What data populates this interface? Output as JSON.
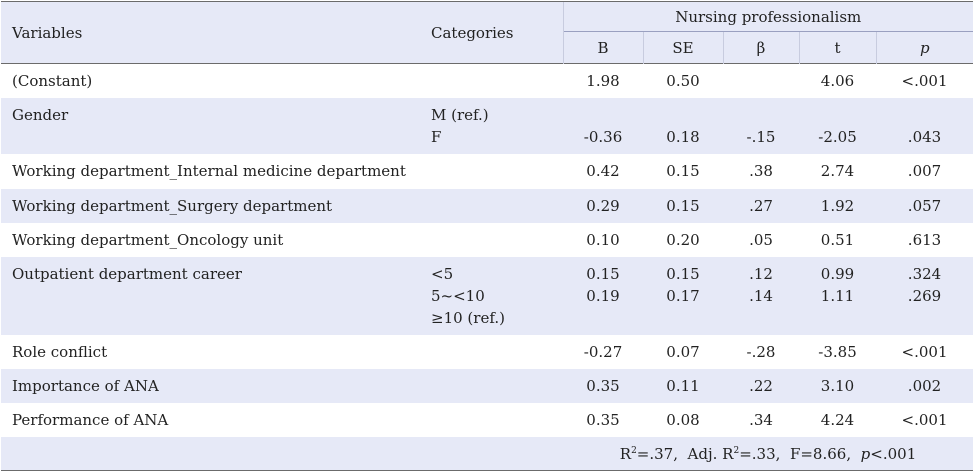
{
  "table": {
    "header": {
      "variables": "Variables",
      "categories": "Categories",
      "group": "Nursing professionalism",
      "cols": [
        "B",
        "SE",
        "β",
        "t",
        "p"
      ]
    },
    "rows": [
      {
        "variable": "(Constant)",
        "categories": [
          ""
        ],
        "B": [
          "1.98"
        ],
        "SE": [
          "0.50"
        ],
        "beta": [
          ""
        ],
        "t": [
          "4.06"
        ],
        "p": [
          "<.001"
        ]
      },
      {
        "variable": "Gender",
        "categories": [
          "M (ref.)",
          "F"
        ],
        "B": [
          "",
          "-0.36"
        ],
        "SE": [
          "",
          "0.18"
        ],
        "beta": [
          "",
          "-.15"
        ],
        "t": [
          "",
          "-2.05"
        ],
        "p": [
          "",
          ".043"
        ]
      },
      {
        "variable": "Working department_Internal medicine department",
        "categories": [
          ""
        ],
        "B": [
          "0.42"
        ],
        "SE": [
          "0.15"
        ],
        "beta": [
          ".38"
        ],
        "t": [
          "2.74"
        ],
        "p": [
          ".007"
        ]
      },
      {
        "variable": "Working department_Surgery department",
        "categories": [
          ""
        ],
        "B": [
          "0.29"
        ],
        "SE": [
          "0.15"
        ],
        "beta": [
          ".27"
        ],
        "t": [
          "1.92"
        ],
        "p": [
          ".057"
        ]
      },
      {
        "variable": "Working department_Oncology unit",
        "categories": [
          ""
        ],
        "B": [
          "0.10"
        ],
        "SE": [
          "0.20"
        ],
        "beta": [
          ".05"
        ],
        "t": [
          "0.51"
        ],
        "p": [
          ".613"
        ]
      },
      {
        "variable": "Outpatient department career",
        "categories": [
          "<5",
          "5~<10",
          "≥10 (ref.)"
        ],
        "B": [
          "0.15",
          "0.19",
          ""
        ],
        "SE": [
          "0.15",
          "0.17",
          ""
        ],
        "beta": [
          ".12",
          ".14",
          ""
        ],
        "t": [
          "0.99",
          "1.11",
          ""
        ],
        "p": [
          ".324",
          ".269",
          ""
        ]
      },
      {
        "variable": "Role conflict",
        "categories": [
          ""
        ],
        "B": [
          "-0.27"
        ],
        "SE": [
          "0.07"
        ],
        "beta": [
          "-.28"
        ],
        "t": [
          "-3.85"
        ],
        "p": [
          "<.001"
        ]
      },
      {
        "variable": "Importance of ANA",
        "categories": [
          ""
        ],
        "B": [
          "0.35"
        ],
        "SE": [
          "0.11"
        ],
        "beta": [
          ".22"
        ],
        "t": [
          "3.10"
        ],
        "p": [
          ".002"
        ]
      },
      {
        "variable": "Performance of ANA",
        "categories": [
          ""
        ],
        "B": [
          "0.35"
        ],
        "SE": [
          "0.08"
        ],
        "beta": [
          ".34"
        ],
        "t": [
          "4.24"
        ],
        "p": [
          "<.001"
        ]
      }
    ],
    "fit": {
      "r2_label": "R",
      "r2_value": "=.37,",
      "adj_label": "Adj. R",
      "adj_value": "=.33,",
      "f_text": "F=8.66,",
      "p_label": "p",
      "p_value": "<.001",
      "sup": "2"
    }
  }
}
